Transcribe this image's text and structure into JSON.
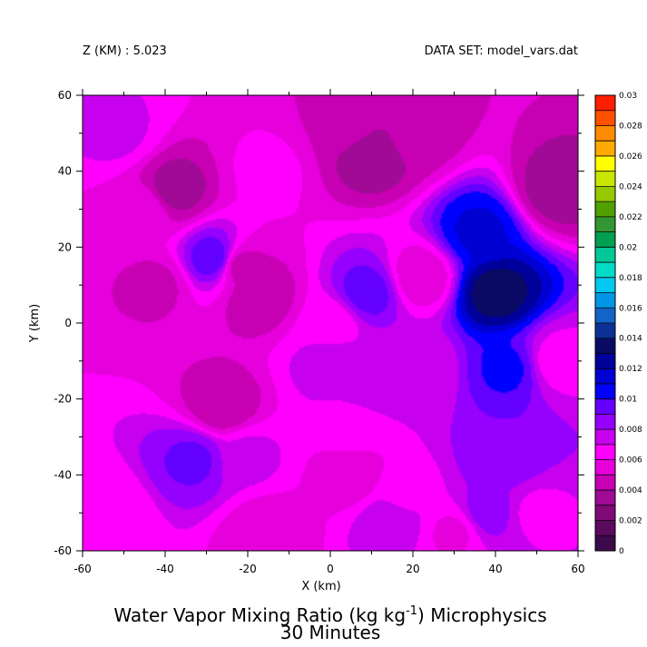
{
  "header": {
    "z_label": "Z (KM) : 5.023",
    "dataset_label": "DATA SET: model_vars.dat"
  },
  "chart_data": {
    "type": "heatmap",
    "title_line1_pre": "Water Vapor Mixing Ratio (kg kg",
    "title_line1_sup": "-1",
    "title_line1_post": ") Microphysics",
    "title_line2": "30 Minutes",
    "xlabel": "X (km)",
    "ylabel": "Y (km)",
    "xlim": [
      -60,
      60
    ],
    "ylim": [
      -60,
      60
    ],
    "xticks": [
      "-60",
      "-40",
      "-20",
      "0",
      "20",
      "40",
      "60"
    ],
    "yticks": [
      "-60",
      "-40",
      "-20",
      "0",
      "20",
      "40",
      "60"
    ],
    "colorbar": {
      "min": 0,
      "max": 0.03,
      "step": 0.001,
      "labels": [
        "0",
        "0.002",
        "0.004",
        "0.006",
        "0.008",
        "0.01",
        "0.012",
        "0.014",
        "0.016",
        "0.018",
        "0.02",
        "0.022",
        "0.024",
        "0.026",
        "0.028",
        "0.03"
      ],
      "colors": [
        "#3c0a4a",
        "#5c0a60",
        "#800a78",
        "#a00a96",
        "#c800b4",
        "#e600dc",
        "#ff00ff",
        "#c800f0",
        "#9600ff",
        "#6400ff",
        "#0000ff",
        "#0000d2",
        "#00009a",
        "#0a0a64",
        "#0a3296",
        "#1464c8",
        "#0096e6",
        "#00c8f0",
        "#00dcc8",
        "#00c896",
        "#00a050",
        "#329632",
        "#50a000",
        "#96c800",
        "#c8e600",
        "#ffff00",
        "#ffaa00",
        "#ff8c00",
        "#ff5000",
        "#ff1e00",
        "#c80000",
        "#640000"
      ]
    },
    "features": [
      {
        "x": 0,
        "y": 0,
        "value": 0.0062
      },
      {
        "x": -52,
        "y": 50,
        "value": 0.0072
      },
      {
        "x": -15,
        "y": 40,
        "value": 0.0062
      },
      {
        "x": 10,
        "y": 45,
        "value": 0.0032
      },
      {
        "x": 20,
        "y": 50,
        "value": 0.0045
      },
      {
        "x": 5,
        "y": 52,
        "value": 0.0048
      },
      {
        "x": 55,
        "y": 35,
        "value": 0.0035
      },
      {
        "x": -45,
        "y": 30,
        "value": 0.0058
      },
      {
        "x": -38,
        "y": 35,
        "value": 0.0035
      },
      {
        "x": -22,
        "y": 15,
        "value": 0.0045
      },
      {
        "x": -28,
        "y": 17,
        "value": 0.0098
      },
      {
        "x": -17,
        "y": 7,
        "value": 0.0042
      },
      {
        "x": -42,
        "y": 10,
        "value": 0.0048
      },
      {
        "x": -26,
        "y": -22,
        "value": 0.0042
      },
      {
        "x": -33,
        "y": -36,
        "value": 0.0092
      },
      {
        "x": -20,
        "y": -35,
        "value": 0.0072
      },
      {
        "x": 5,
        "y": -28,
        "value": 0.0065
      },
      {
        "x": 5,
        "y": -40,
        "value": 0.0052
      },
      {
        "x": 0,
        "y": -10,
        "value": 0.0075
      },
      {
        "x": 9,
        "y": 8,
        "value": 0.0095
      },
      {
        "x": 10,
        "y": -15,
        "value": 0.0078
      },
      {
        "x": 22,
        "y": 12,
        "value": 0.0052
      },
      {
        "x": 22,
        "y": -12,
        "value": 0.0072
      },
      {
        "x": 18,
        "y": -45,
        "value": 0.0065
      },
      {
        "x": 15,
        "y": -52,
        "value": 0.0078
      },
      {
        "x": 36,
        "y": 24,
        "value": 0.0112
      },
      {
        "x": 40,
        "y": 8,
        "value": 0.0135
      },
      {
        "x": 43,
        "y": -12,
        "value": 0.0102
      },
      {
        "x": 42,
        "y": -35,
        "value": 0.009
      },
      {
        "x": 38,
        "y": -50,
        "value": 0.0085
      },
      {
        "x": 50,
        "y": -50,
        "value": 0.0068
      },
      {
        "x": 55,
        "y": -10,
        "value": 0.0065
      },
      {
        "x": -15,
        "y": -55,
        "value": 0.0052
      },
      {
        "x": 30,
        "y": -55,
        "value": 0.0058
      },
      {
        "x": -55,
        "y": -50,
        "value": 0.006
      }
    ]
  }
}
